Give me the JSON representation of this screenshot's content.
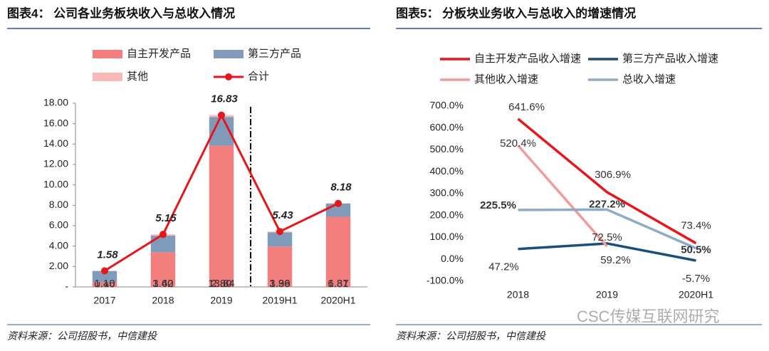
{
  "chart_data": [
    {
      "type": "bar",
      "stacked": true,
      "title": "图表4： 公司各业务板块收入与总收入情况",
      "source": "资料来源：公司招股书，中信建投",
      "categories": [
        "2017",
        "2018",
        "2019",
        "2019H1",
        "2020H1"
      ],
      "ylim": [
        0,
        18
      ],
      "yticks": [
        {
          "value": 0,
          "label": "-"
        },
        {
          "value": 2,
          "label": "2.00"
        },
        {
          "value": 4,
          "label": "4.00"
        },
        {
          "value": 6,
          "label": "6.00"
        },
        {
          "value": 8,
          "label": "8.00"
        },
        {
          "value": 10,
          "label": "10.00"
        },
        {
          "value": 12,
          "label": "12.00"
        },
        {
          "value": 14,
          "label": "14.00"
        },
        {
          "value": 16,
          "label": "16.00"
        },
        {
          "value": 18,
          "label": "18.00"
        }
      ],
      "series": [
        {
          "name": "自主开发产品",
          "color": "#f27e7e",
          "values": [
            0.46,
            3.4,
            13.84,
            3.96,
            6.87
          ],
          "value_labels": [
            "0.46",
            "3.40",
            "13.84",
            "3.96",
            "6.87"
          ]
        },
        {
          "name": "第三方产品",
          "color": "#7f9bb9",
          "values": [
            1.1,
            1.62,
            2.8,
            1.39,
            1.31
          ],
          "value_labels": [
            "1.10",
            "1.62",
            "2.80",
            "1.39",
            "1.31"
          ]
        },
        {
          "name": "其他",
          "color": "#f9b9b9",
          "values": [
            0.02,
            0.13,
            0.19,
            0.08,
            0.0
          ]
        },
        {
          "name": "合计",
          "type": "line",
          "color": "#e8151b",
          "values": [
            1.58,
            5.15,
            16.83,
            5.43,
            8.18
          ]
        }
      ]
    },
    {
      "type": "line",
      "title": "图表5： 分板块业务收入与总收入的增速情况",
      "source": "资料来源：公司招股书，中信建投",
      "categories": [
        "2018",
        "2019",
        "2020H1"
      ],
      "ylim": [
        -100,
        700
      ],
      "yticks": [
        {
          "value": -100,
          "label": "-100.0%"
        },
        {
          "value": 0,
          "label": "0.0%"
        },
        {
          "value": 100,
          "label": "100.0%"
        },
        {
          "value": 200,
          "label": "200.0%"
        },
        {
          "value": 300,
          "label": "300.0%"
        },
        {
          "value": 400,
          "label": "400.0%"
        },
        {
          "value": 500,
          "label": "500.0%"
        },
        {
          "value": 600,
          "label": "600.0%"
        },
        {
          "value": 700,
          "label": "700.0%"
        }
      ],
      "series": [
        {
          "name": "自主开发产品收入增速",
          "color": "#e8151b",
          "values": [
            641.6,
            306.9,
            73.4
          ],
          "value_labels": [
            "641.6%",
            "306.9%",
            "73.4%"
          ]
        },
        {
          "name": "第三方产品收入增速",
          "color": "#1a4f7a",
          "values": [
            47.2,
            72.5,
            -5.7
          ],
          "value_labels": [
            "47.2%",
            "72.5%",
            "-5.7%"
          ]
        },
        {
          "name": "其他收入增速",
          "color": "#f59a9a",
          "values": [
            520.4,
            59.2,
            null
          ],
          "value_labels": [
            "520.4%",
            "59.2%",
            null
          ]
        },
        {
          "name": "总收入增速",
          "color": "#8fabc6",
          "values": [
            225.5,
            227.2,
            50.5
          ],
          "value_labels": [
            "225.5%",
            "227.2%",
            "50.5%"
          ]
        }
      ]
    }
  ],
  "watermark": "CSC传媒互联网研究"
}
